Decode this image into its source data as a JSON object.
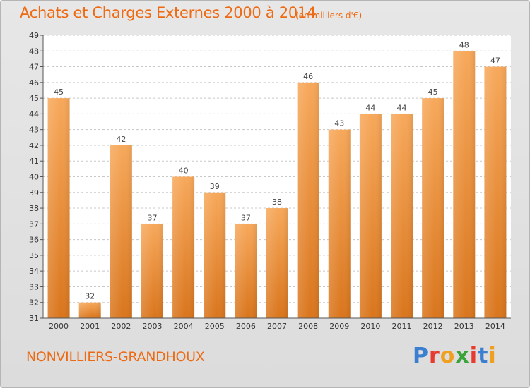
{
  "header": {
    "title": "Achats et Charges Externes 2000 à 2014",
    "subtitle": "(en milliers d'€)"
  },
  "footer": {
    "place": "NONVILLIERS-GRANDHOUX",
    "logo_letters": [
      "P",
      "r",
      "o",
      "x",
      "i",
      "t",
      "i"
    ],
    "logo_colors": [
      "#3a7fd0",
      "#e63b2e",
      "#f0a020",
      "#3aa33a",
      "#e63b2e",
      "#3a7fd0",
      "#f0a020"
    ]
  },
  "colors": {
    "bar_light": "#f7a85a",
    "bar_dark": "#d9751c",
    "text_accent": "#ee6a12"
  },
  "chart_data": {
    "type": "bar",
    "title": "Achats et Charges Externes 2000 à 2014",
    "subtitle": "(en milliers d'€)",
    "xlabel": "",
    "ylabel": "",
    "categories": [
      "2000",
      "2001",
      "2002",
      "2003",
      "2004",
      "2005",
      "2006",
      "2007",
      "2008",
      "2009",
      "2010",
      "2011",
      "2012",
      "2013",
      "2014"
    ],
    "values": [
      45,
      32,
      42,
      37,
      40,
      39,
      37,
      38,
      46,
      43,
      44,
      44,
      45,
      48,
      47
    ],
    "value_labels": [
      "45",
      "32",
      "42",
      "37",
      "40",
      "39",
      "37",
      "38",
      "46",
      "43",
      "44",
      "44",
      "45",
      "48",
      "47"
    ],
    "ylim": [
      31,
      49
    ],
    "yticks": [
      "31",
      "32",
      "33",
      "34",
      "35",
      "36",
      "37",
      "38",
      "39",
      "40",
      "41",
      "42",
      "43",
      "44",
      "45",
      "46",
      "47",
      "48",
      "49"
    ],
    "grid": true,
    "legend": "none"
  }
}
